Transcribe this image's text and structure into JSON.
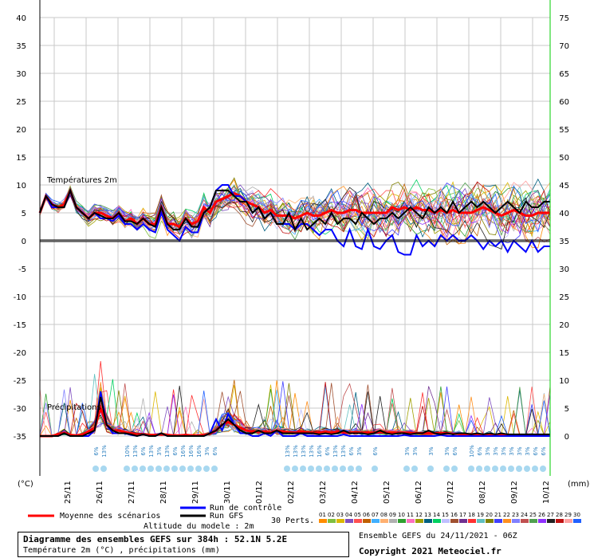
{
  "chart_data": {
    "type": "line",
    "y_left_temp_lim": [
      -35,
      40
    ],
    "y_right_precip_lim": [
      0,
      75
    ],
    "y_left_ticks": [
      40,
      35,
      30,
      25,
      20,
      15,
      10,
      5,
      0,
      -5,
      -10,
      -15,
      -20,
      -25,
      -30,
      -35
    ],
    "y_right_ticks": [
      75,
      70,
      65,
      60,
      55,
      50,
      45,
      40,
      35,
      30,
      25,
      20,
      15,
      10,
      5,
      0
    ],
    "y_left_unit": "(°C)",
    "y_right_unit": "(mm)",
    "x_labels": [
      "25/11",
      "26/11",
      "27/11",
      "28/11",
      "29/11",
      "30/11",
      "01/12",
      "02/12",
      "03/12",
      "04/12",
      "05/12",
      "06/12",
      "07/12",
      "08/12",
      "09/12",
      "10/12"
    ],
    "temp_label": "Températures 2m",
    "precip_label": "Précipitations",
    "series": [
      {
        "name": "Moyenne des scénarios",
        "color": "#ff0000",
        "temp": [
          5,
          8,
          6.5,
          6,
          6.5,
          9,
          6,
          5,
          4,
          5,
          5,
          4.5,
          4,
          5,
          3.5,
          4,
          3,
          4,
          3,
          3,
          6,
          3,
          3,
          2.5,
          4,
          3,
          3.5,
          6,
          5,
          7,
          7.5,
          8,
          8.5,
          8,
          7,
          6.5,
          6,
          5,
          5.5,
          4.5,
          4.5,
          4.5,
          4,
          4.5,
          5,
          4.5,
          4.5,
          5,
          5.5,
          5,
          5,
          5.5,
          5.5,
          5,
          5,
          5,
          5,
          5,
          6,
          5.5,
          6,
          5.5,
          6,
          5.5,
          5.5,
          5,
          5.5,
          5,
          5.5,
          5,
          5,
          5,
          5.5,
          6,
          5.5,
          5,
          4.5,
          5,
          5.5,
          5,
          4.5,
          4.5,
          5,
          5,
          5
        ],
        "precip": [
          0,
          0,
          0,
          0.3,
          0.6,
          0.2,
          0.1,
          0.3,
          0.8,
          1.5,
          5,
          2,
          1,
          1,
          0.7,
          0.5,
          0.3,
          0.3,
          0.2,
          0.2,
          0.3,
          0.2,
          0.1,
          0.1,
          0.2,
          0.1,
          0.1,
          0.2,
          0.4,
          1,
          2,
          2.5,
          2,
          1.5,
          1,
          0.8,
          0.8,
          0.8,
          0.6,
          1,
          0.8,
          0.7,
          0.6,
          0.8,
          0.7,
          0.6,
          0.6,
          0.8,
          0.6,
          0.8,
          0.6,
          0.6,
          0.7,
          0.6,
          0.6,
          0.6,
          0.7,
          0.6,
          0.6,
          0.6,
          0.6,
          0.6,
          0.5,
          0.5,
          0.5,
          0.5,
          0.5,
          0.5,
          0.4,
          0.4,
          0.3,
          0.3,
          0.3,
          0.2,
          0.2,
          0.2,
          0.2,
          0.2,
          0.2,
          0.2,
          0.2,
          0.2,
          0.2,
          0.1,
          0.1
        ]
      },
      {
        "name": "Run de contrôle",
        "color": "#0000ff",
        "temp": [
          5,
          8,
          6,
          6,
          6,
          9,
          6,
          5,
          4,
          5,
          4,
          4,
          3.5,
          4.5,
          3,
          3,
          2,
          3,
          2,
          1.5,
          5,
          2,
          1,
          0,
          2.5,
          1.5,
          1.5,
          5,
          6,
          9,
          10,
          10,
          8,
          8,
          7,
          5,
          6,
          4,
          5,
          3,
          3,
          3,
          2,
          3,
          3,
          2,
          1,
          2,
          2,
          0,
          -1,
          2,
          -1,
          -1.5,
          2,
          -1,
          -1.5,
          0,
          1,
          -2,
          -2.5,
          -2.5,
          1,
          -1,
          0,
          -1,
          1,
          0,
          1,
          0,
          0,
          1,
          0,
          -1.5,
          0,
          -1,
          0,
          -2,
          0,
          -1,
          -2,
          0,
          -2,
          -1,
          -1
        ],
        "precip": [
          0,
          0,
          0,
          0,
          0.5,
          0,
          0,
          0,
          0,
          1,
          8,
          2,
          0.5,
          0.5,
          0.5,
          0.2,
          0,
          0.3,
          0,
          0,
          0.5,
          0,
          0,
          0,
          0,
          0,
          0,
          0,
          0.5,
          3,
          1,
          4,
          2,
          0.5,
          0.5,
          0,
          0,
          0.5,
          0,
          1,
          0,
          0,
          0,
          0.5,
          0,
          0,
          0,
          0,
          0,
          0,
          0.3,
          0,
          0,
          0,
          0,
          0,
          0,
          0,
          0,
          0,
          0.2,
          0,
          0,
          0,
          0,
          0,
          0.2,
          0,
          0,
          0,
          0,
          0,
          0,
          0,
          0,
          0,
          0,
          0,
          0,
          0,
          0,
          0,
          0,
          0,
          0
        ]
      },
      {
        "name": "Run GFS",
        "color": "#000000",
        "temp": [
          5,
          8,
          6.5,
          6,
          6,
          9,
          6,
          5,
          4,
          5,
          4.5,
          4,
          4,
          5,
          3.5,
          3.5,
          3,
          4,
          3,
          2.5,
          6,
          3,
          2,
          2,
          4,
          2.5,
          2.5,
          5,
          6,
          9,
          9,
          9,
          8,
          7,
          7,
          5,
          6,
          4,
          5,
          3,
          3,
          5,
          2,
          4,
          2,
          3,
          4,
          3,
          5,
          3,
          4,
          4,
          3,
          5,
          4,
          3,
          4,
          4,
          5,
          4,
          5,
          6,
          5,
          4,
          6,
          5,
          6,
          5,
          7,
          5,
          6,
          7,
          6,
          7,
          6,
          5,
          6,
          7,
          6,
          5,
          7,
          6,
          6,
          7,
          7
        ],
        "precip": [
          0,
          0,
          0,
          0,
          0.5,
          0,
          0,
          0,
          0.5,
          1,
          7,
          2,
          1,
          0.5,
          0.5,
          0.3,
          0,
          0.3,
          0,
          0,
          0.5,
          0,
          0,
          0,
          0,
          0,
          0,
          0,
          0.5,
          1,
          2,
          3,
          2,
          1,
          0.5,
          0.5,
          1,
          0.5,
          0.5,
          1,
          0.5,
          0.5,
          0.5,
          0.5,
          0.5,
          0.5,
          0.3,
          0.5,
          0.3,
          0.5,
          1,
          0.5,
          0.5,
          0.5,
          0.3,
          0.5,
          1,
          0.5,
          0.3,
          0.5,
          0.5,
          0.3,
          0.5,
          0.5,
          1,
          0.5,
          0.3,
          0.5,
          0.3,
          0.5,
          0.5,
          0.3,
          0.5,
          0.3,
          0.5,
          0.3,
          0.5,
          0.3,
          0.3,
          0.3,
          0.3,
          0.3,
          0.3,
          0.3,
          0.3
        ]
      }
    ],
    "perturbations_label": "30 Perts.",
    "perturbation_ids": [
      "01",
      "02",
      "03",
      "04",
      "05",
      "06",
      "07",
      "08",
      "09",
      "10",
      "11",
      "12",
      "13",
      "14",
      "15",
      "16",
      "17",
      "18",
      "19",
      "20",
      "21",
      "22",
      "23",
      "24",
      "25",
      "26",
      "27",
      "28",
      "29",
      "30"
    ],
    "perturbation_colors": [
      "#ff8c00",
      "#7fbf3f",
      "#dcb800",
      "#8050c0",
      "#ff5050",
      "#c06000",
      "#40b0ff",
      "#ffb070",
      "#b0b0b0",
      "#30a030",
      "#ff70c0",
      "#a0a000",
      "#006080",
      "#00d060",
      "#c0c0ff",
      "#a05030",
      "#703090",
      "#ff3030",
      "#60c0c0",
      "#808000",
      "#4040ff",
      "#ff9020",
      "#8080ff",
      "#c05050",
      "#50a050",
      "#9030ff",
      "#202020",
      "#c01010",
      "#ffa0a0",
      "#2060ff"
    ],
    "snow_labels": [
      {
        "group": [
          "6%",
          "13%"
        ]
      },
      {
        "group": [
          "10%",
          "13%",
          "6%",
          "13%",
          "3%",
          "13%",
          "6%",
          "16%",
          "16%",
          "16%",
          "3%",
          "6%"
        ]
      },
      {
        "group": [
          "13%",
          "13%",
          "13%",
          "13%",
          "16%",
          "6%",
          "13%",
          "13%",
          "6%",
          "3%"
        ]
      },
      {
        "group": [
          "6%"
        ]
      },
      {
        "group": [
          "3%",
          "3%"
        ]
      },
      {
        "group": [
          "3%"
        ]
      },
      {
        "group": [
          "3%",
          "6%"
        ]
      },
      {
        "group": [
          "10%",
          "6%",
          "3%",
          "3%",
          "3%",
          "3%",
          "3%",
          "3%",
          "6%",
          "6%"
        ]
      }
    ],
    "legend": {
      "mean": "Moyenne des scénarios",
      "control": "Run de contrôle",
      "gfs": "Run GFS",
      "altitude": "Altitude du modele : 2m"
    }
  },
  "info": {
    "title": "Diagramme des ensembles GEFS sur 384h : 52.1N 5.2E",
    "subtitle": "Température 2m (°C) , précipitations (mm)",
    "ensemble_run": "Ensemble GEFS du 24/11/2021 - 06Z",
    "copyright": "Copyright 2021 Meteociel.fr"
  }
}
